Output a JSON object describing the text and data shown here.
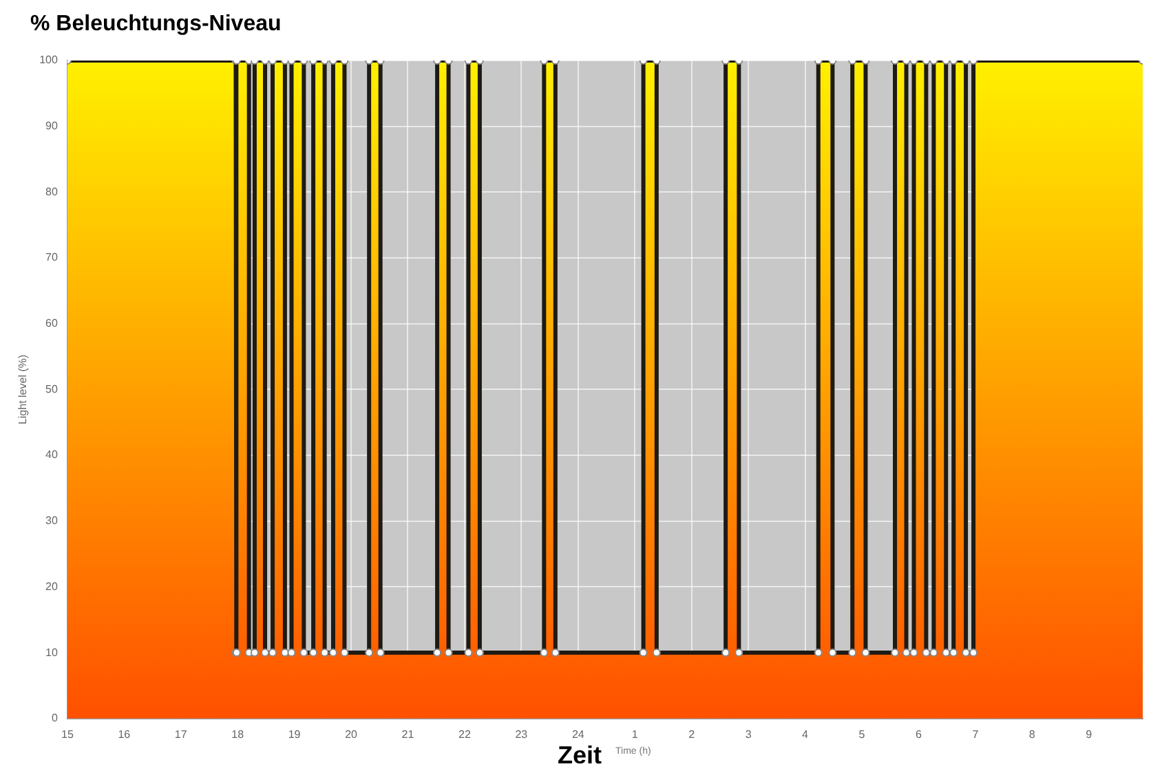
{
  "chart_data": {
    "type": "area",
    "title": "% Beleuchtungs-Niveau",
    "xlabel": "Zeit",
    "ylabel": "Light level (%)",
    "annotations": [
      "Time (h)"
    ],
    "x": [
      "--01-01T15:00",
      "--01-01T17:58",
      "--01-01T17:58",
      "--01-01T17:59",
      "--01-01T17:59",
      "--01-01T18:12",
      "--01-01T18:12",
      "--01-01T18:18",
      "--01-01T18:18",
      "--01-01T18:29",
      "--01-01T18:29",
      "--01-01T18:37",
      "--01-01T18:37",
      "--01-01T18:50",
      "--01-01T18:50",
      "--01-01T18:57",
      "--01-01T18:57",
      "--01-01T19:10",
      "--01-01T19:10",
      "--01-01T19:20",
      "--01-01T19:20",
      "--01-01T19:32",
      "--01-01T19:32",
      "--01-01T19:41",
      "--01-01T19:41",
      "--01-01T19:53",
      "--01-01T19:53",
      "--01-01T20:19",
      "--01-01T20:19",
      "--01-01T20:31",
      "--01-01T20:31",
      "--01-01T21:31",
      "--01-01T21:31",
      "--01-01T21:43",
      "--01-01T21:43",
      "--01-01T22:04",
      "--01-01T22:04",
      "--01-01T22:16",
      "--01-01T22:16",
      "--01-01T23:24",
      "--01-01T23:24",
      "--01-01T23:36",
      "--01-01T23:36",
      "--01-02T01:09",
      "--01-02T01:09",
      "--01-02T01:23",
      "--01-02T01:23",
      "--01-02T02:36",
      "--01-02T02:36",
      "--01-02T02:50",
      "--01-02T02:50",
      "--01-02T04:14",
      "--01-02T04:14",
      "--01-02T04:29",
      "--01-02T04:29",
      "--01-02T04:50",
      "--01-02T04:50",
      "--01-02T05:04",
      "--01-02T05:04",
      "--01-02T05:35",
      "--01-02T05:35",
      "--01-02T05:47",
      "--01-02T05:47",
      "--01-02T05:55",
      "--01-02T05:55",
      "--01-02T06:08",
      "--01-02T06:08",
      "--01-02T06:16",
      "--01-02T06:16",
      "--01-02T06:29",
      "--01-02T06:29",
      "--01-02T06:37",
      "--01-02T06:37",
      "--01-02T06:50",
      "--01-02T06:50",
      "--01-02T06:58",
      "--01-02T06:58",
      "--01-02T09:57"
    ],
    "series": [
      {
        "color": "#ffa000",
        "values": [
          100,
          100,
          10,
          10,
          100,
          100,
          10,
          10,
          100,
          100,
          10,
          10,
          100,
          100,
          10,
          10,
          100,
          100,
          10,
          10,
          100,
          100,
          10,
          10,
          100,
          100,
          10,
          10,
          100,
          100,
          10,
          10,
          100,
          100,
          10,
          10,
          100,
          100,
          10,
          10,
          100,
          100,
          10,
          10,
          100,
          100,
          10,
          10,
          100,
          100,
          10,
          10,
          100,
          100,
          10,
          10,
          100,
          100,
          10,
          10,
          100,
          100,
          10,
          10,
          100,
          100,
          10,
          10,
          100,
          100,
          10,
          10,
          100,
          100,
          10,
          10,
          100,
          100
        ]
      }
    ],
    "xlim": [
      "--01-01T15:00",
      "--01-02T09:57"
    ],
    "xticks": [
      {
        "value": "--01-01T15:00",
        "label": "15"
      },
      {
        "value": "--01-01T16:00",
        "label": "16"
      },
      {
        "value": "--01-01T17:00",
        "label": "17"
      },
      {
        "value": "--01-01T18:00",
        "label": "18"
      },
      {
        "value": "--01-01T19:00",
        "label": "19"
      },
      {
        "value": "--01-01T20:00",
        "label": "20"
      },
      {
        "value": "--01-01T21:00",
        "label": "21"
      },
      {
        "value": "--01-01T22:00",
        "label": "22"
      },
      {
        "value": "--01-01T23:00",
        "label": "23"
      },
      {
        "value": "--01-02T00:00",
        "label": "24"
      },
      {
        "value": "--01-02T01:00",
        "label": "1"
      },
      {
        "value": "--01-02T02:00",
        "label": "2"
      },
      {
        "value": "--01-02T03:00",
        "label": "3"
      },
      {
        "value": "--01-02T04:00",
        "label": "4"
      },
      {
        "value": "--01-02T05:00",
        "label": "5"
      },
      {
        "value": "--01-02T06:00",
        "label": "6"
      },
      {
        "value": "--01-02T07:00",
        "label": "7"
      },
      {
        "value": "--01-02T08:00",
        "label": "8"
      },
      {
        "value": "--01-02T09:00",
        "label": "9"
      }
    ],
    "ylim": [
      0,
      100
    ],
    "yticks": [
      0,
      10,
      20,
      30,
      40,
      50,
      60,
      70,
      80,
      90,
      100
    ],
    "grid": true,
    "legend": false,
    "marker": "circle",
    "line_style": "solid"
  }
}
